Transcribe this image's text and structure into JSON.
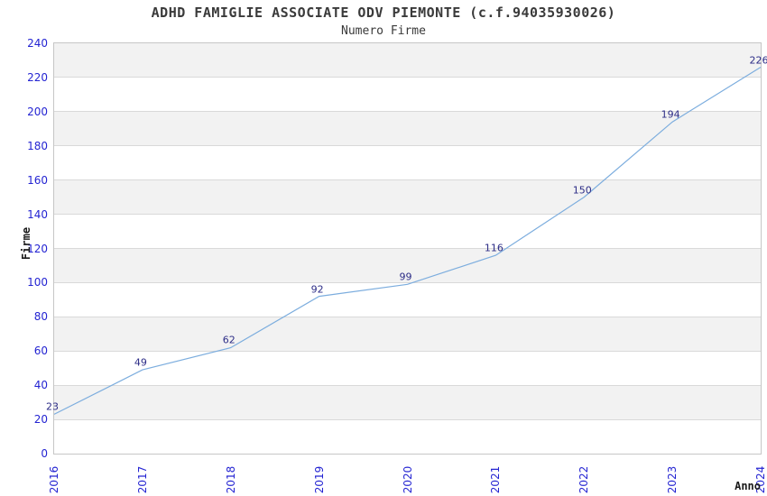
{
  "chart_data": {
    "type": "line",
    "title": "ADHD FAMIGLIE ASSOCIATE ODV PIEMONTE (c.f.94035930026)",
    "subtitle": "Numero Firme",
    "xlabel": "Anno",
    "ylabel": "Firme",
    "categories": [
      "2016",
      "2017",
      "2018",
      "2019",
      "2020",
      "2021",
      "2022",
      "2023",
      "2024"
    ],
    "series": [
      {
        "name": "Numero Firme",
        "values": [
          23,
          49,
          62,
          92,
          99,
          116,
          150,
          194,
          226
        ]
      }
    ],
    "data_labels_visible": true,
    "ylim": [
      0,
      240
    ],
    "ytick_step": 20,
    "grid": true,
    "bands": "alternating horizontal gray stripes every 20 units starting at 20",
    "legend_position": "none",
    "x_tick_rotation_deg": 90,
    "colors": {
      "line": "#7cadde",
      "tick": "#2424d2",
      "dlabel": "#2d2d87",
      "band": "#f2f2f2",
      "grid": "#d9d9d9",
      "border": "#c6c6c6",
      "title": "#3a3a3a"
    }
  }
}
